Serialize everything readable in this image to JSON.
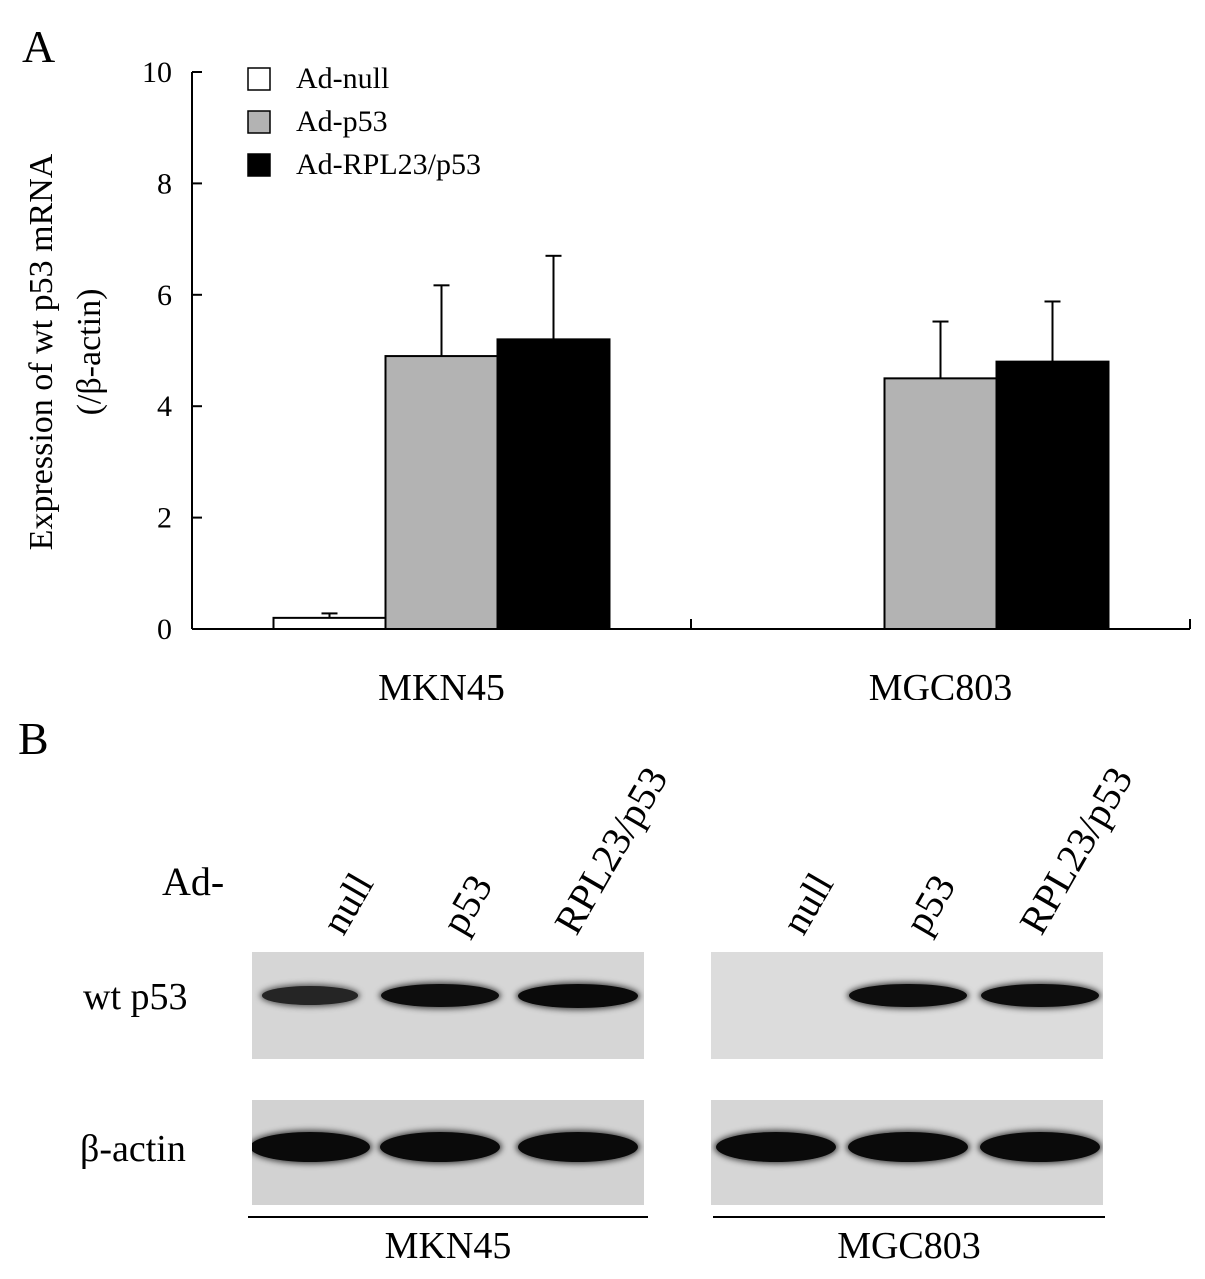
{
  "panels": {
    "a_label": "A",
    "b_label": "B"
  },
  "chart_data": {
    "type": "bar",
    "categories": [
      "MKN45",
      "MGC803"
    ],
    "ylabel_line1": "Expression of wt p53 mRNA",
    "ylabel_line2": "(/β-actin)",
    "ylim": [
      0,
      10
    ],
    "yticks": [
      "0",
      "2",
      "4",
      "6",
      "8",
      "10"
    ],
    "legend_position": "top-left",
    "series": [
      {
        "name": "Ad-null",
        "color": "#ffffff",
        "values": [
          0.2,
          0
        ],
        "errors": [
          0.08,
          0
        ]
      },
      {
        "name": "Ad-p53",
        "color": "#b3b3b3",
        "values": [
          4.9,
          4.5
        ],
        "errors": [
          1.27,
          1.02
        ]
      },
      {
        "name": "Ad-RPL23/p53",
        "color": "#000000",
        "values": [
          5.2,
          4.8
        ],
        "errors": [
          1.5,
          1.08
        ]
      }
    ]
  },
  "western_blot": {
    "prefix": "Ad-",
    "lanes": [
      "null",
      "p53",
      "RPL23/p53"
    ],
    "rows": [
      "wt p53",
      "β-actin"
    ],
    "groups": [
      "MKN45",
      "MGC803"
    ],
    "band_intensity": {
      "MKN45": {
        "wt p53": [
          0.55,
          0.95,
          1.0
        ],
        "β-actin": [
          1.0,
          1.0,
          1.0
        ]
      },
      "MGC803": {
        "wt p53": [
          0.0,
          0.95,
          0.95
        ],
        "β-actin": [
          1.0,
          1.0,
          1.0
        ]
      }
    }
  }
}
